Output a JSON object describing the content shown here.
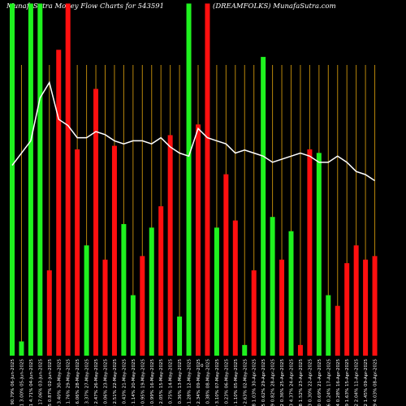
{
  "header": {
    "title_left": "MunafaSutra Money Flow  Charts for 543591",
    "title_right": "(DREAMFOLKS) MunafaSutra.com"
  },
  "chart_data": {
    "type": "bar",
    "title": "MunafaSutra Money Flow  Charts for 543591 (DREAMFOLKS) MunafaSutra.com",
    "zero_label": "0",
    "categories": [
      "183.51 90.79% 06-Jun-2025",
      "120.91 3.00% 05-Jun-2025",
      "120.51 4.71% 04-Jun-2025",
      "135.46 17.06% 03-Jun-2025",
      "137.95 0.87% 02-Jun-2025",
      "145.80 3.40% 30-May-2025",
      "150.91 1.76% 29-May-2025",
      "148.35 6.06% 28-May-2025",
      "139.91 3.37% 27-May-2025",
      "137.53 2.47% 26-May-2025",
      "132.15 0.06% 23-May-2025",
      "130.33 2.51% 22-May-2025",
      "128.61 0.43% 21-May-2025",
      "131.65 1.14% 20-May-2025",
      "129.80 0.95% 19-May-2025",
      "130.38 0.99% 16-May-2025",
      "127.33 2.05% 15-May-2025",
      "129.75 0.75% 14-May-2025",
      "129.82 0.36% 13-May-2025",
      "134.00 1.28% 12-May-2025",
      "130.60 2.34% 09-May-2025",
      "133.01 0.38% 08-May-2025",
      "127.60 3.10% 07-May-2025",
      "126.82 0.23% 06-May-2025",
      "121.36 1.10% 05-May-2025",
      "125.99 2.63% 02-May-2025",
      "123.88 1.03% 30-Apr-2025",
      "124.65 0.62% 29-Apr-2025",
      "119.89 0.82% 28-Apr-2025",
      "122.52 0.36% 25-Apr-2025",
      "123.23 4.37% 24-Apr-2025",
      "118.28 1.52% 23-Apr-2025",
      "122.33 0.30% 22-Apr-2025",
      "121.80 0.69% 21-Apr-2025",
      "120.86 0.24% 17-Apr-2025",
      "123.24 0.28% 16-Apr-2025",
      "124.99 1.63% 15-Apr-2025",
      "117.32 2.04% 11-Apr-2025",
      "119.52 1.45% 09-Apr-2025",
      "111.79 4.03% 08-Apr-2025"
    ],
    "bar_colors": [
      "green",
      "green",
      "green",
      "green",
      "red",
      "red",
      "red",
      "red",
      "green",
      "red",
      "red",
      "red",
      "green",
      "green",
      "red",
      "green",
      "red",
      "red",
      "green",
      "green",
      "red",
      "red",
      "green",
      "red",
      "red",
      "green",
      "red",
      "green",
      "green",
      "red",
      "green",
      "red",
      "red",
      "green",
      "green",
      "red",
      "red",
      "red",
      "red",
      "red"
    ],
    "bar_values": [
      99,
      4,
      99,
      99,
      24,
      86,
      99,
      58,
      31,
      75,
      27,
      59,
      37,
      17,
      28,
      36,
      42,
      62,
      11,
      99,
      65,
      99,
      36,
      51,
      38,
      3,
      24,
      84,
      39,
      27,
      35,
      3,
      58,
      57,
      17,
      14,
      26,
      31,
      27,
      28
    ],
    "line_values": [
      62,
      66,
      70,
      84,
      89,
      77,
      75,
      71,
      71,
      73,
      72,
      70,
      69,
      70,
      70,
      69,
      71,
      68,
      66,
      65,
      74,
      71,
      70,
      69,
      66,
      67,
      66,
      65,
      63,
      64,
      65,
      66,
      65,
      63,
      63,
      65,
      63,
      60,
      59,
      57
    ],
    "ylim": [
      0,
      100
    ],
    "colors": {
      "green": "#1ff21f",
      "red": "#ff0f0f",
      "gridline": "#b8860b",
      "line": "#ffffff",
      "text": "#ffffff",
      "background": "#000000"
    }
  }
}
